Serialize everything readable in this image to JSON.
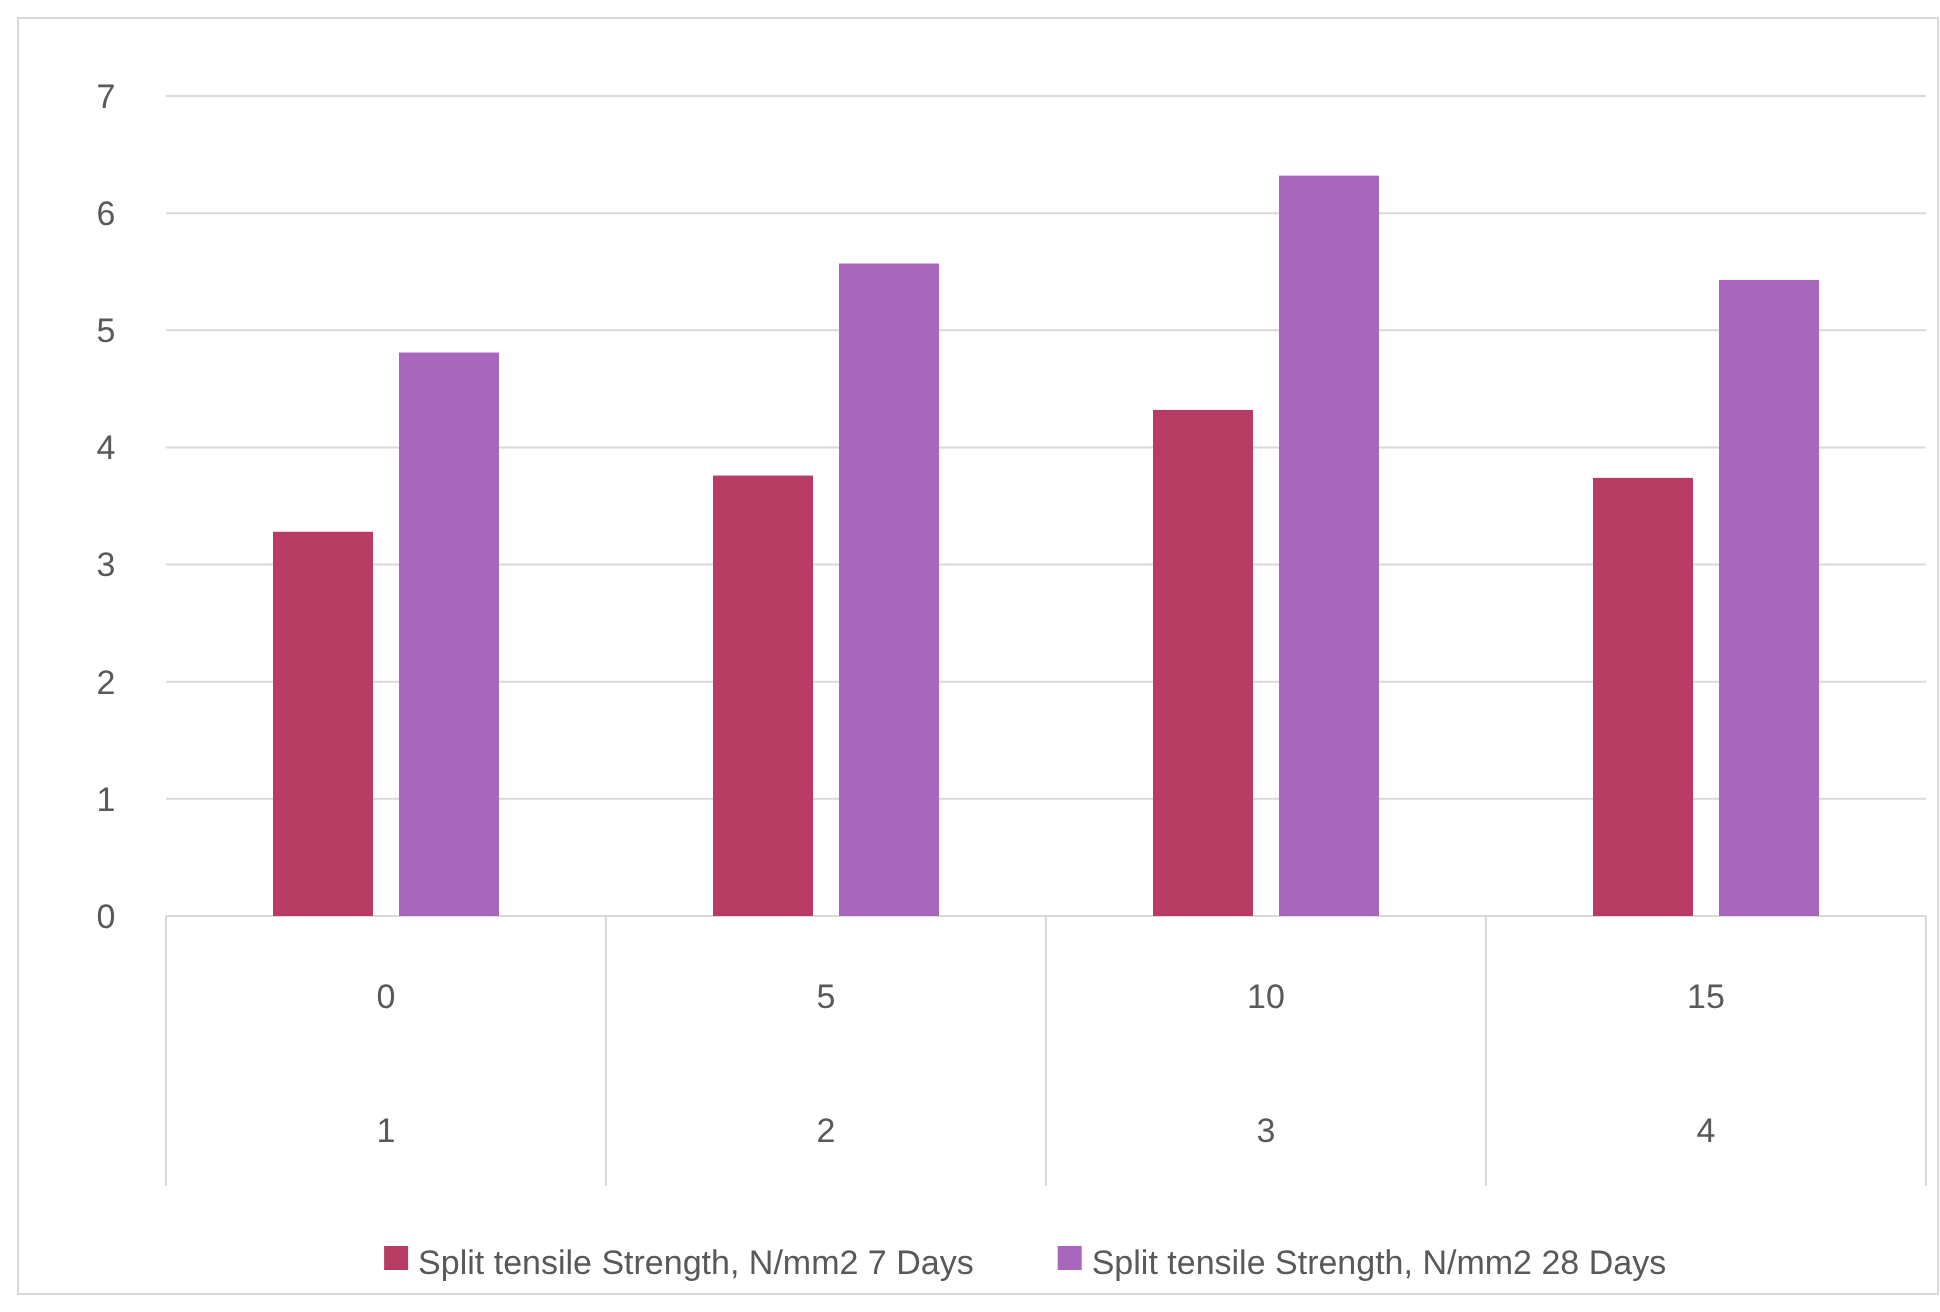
{
  "chart_data": {
    "type": "bar",
    "categories": [
      "0\n1",
      "5\n2",
      "10\n3",
      "15\n4"
    ],
    "series": [
      {
        "name": "Split tensile Strength, N/mm2 7 Days",
        "color": "#b83b64",
        "values": [
          3.28,
          3.76,
          4.32,
          3.74
        ]
      },
      {
        "name": "Split tensile Strength, N/mm2 28 Days",
        "color": "#a966bd",
        "values": [
          4.81,
          5.57,
          6.32,
          5.43
        ]
      }
    ],
    "ylim": [
      0,
      7
    ],
    "yticks": [
      0,
      1,
      2,
      3,
      4,
      5,
      6,
      7
    ],
    "grid": "y",
    "legend": "bottom"
  }
}
